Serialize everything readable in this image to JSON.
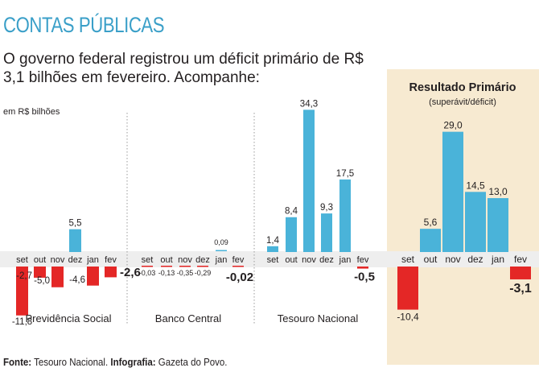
{
  "header": {
    "title": "CONTAS PÚBLICAS",
    "lede": "O governo federal registrou um déficit primário de R$ 3,1 bilhões em fevereiro. Acompanhe:",
    "unit_label": "em R$ bilhões"
  },
  "footer": {
    "source_label": "Fonte:",
    "source_text": "Tesouro Nacional.",
    "credit_label": "Infografia:",
    "credit_text": "Gazeta do Povo."
  },
  "colors": {
    "positive": "#4ab3d9",
    "negative": "#e42726",
    "highlight_bg": "#f7ead1",
    "baseline_band": "#eeeeee",
    "divider": "#999999"
  },
  "chart_data": [
    {
      "type": "bar",
      "title": "Previdência Social",
      "categories": [
        "set",
        "out",
        "nov",
        "dez",
        "jan",
        "fev"
      ],
      "values": [
        -11.8,
        -2.7,
        -5.0,
        5.5,
        -4.6,
        -2.6
      ],
      "labels": [
        "-11,8",
        "-2,7",
        "-5,0",
        "5,5",
        "-4,6",
        "-2,6"
      ]
    },
    {
      "type": "bar",
      "title": "Banco Central",
      "categories": [
        "set",
        "out",
        "nov",
        "dez",
        "jan",
        "fev"
      ],
      "values": [
        -0.03,
        -0.13,
        -0.35,
        -0.29,
        0.09,
        -0.02
      ],
      "labels": [
        "-0,03",
        "-0,13",
        "-0,35",
        "-0,29",
        "0,09",
        "-0,02"
      ]
    },
    {
      "type": "bar",
      "title": "Tesouro Nacional",
      "categories": [
        "set",
        "out",
        "nov",
        "dez",
        "jan",
        "fev"
      ],
      "values": [
        1.4,
        8.4,
        34.3,
        9.3,
        17.5,
        -0.5
      ],
      "labels": [
        "1,4",
        "8,4",
        "34,3",
        "9,3",
        "17,5",
        "-0,5"
      ]
    },
    {
      "type": "bar",
      "title": "Resultado Primário",
      "subtitle": "(superávit/déficit)",
      "categories": [
        "set",
        "out",
        "nov",
        "dez",
        "jan",
        "fev"
      ],
      "values": [
        -10.4,
        5.6,
        29.0,
        14.5,
        13.0,
        -3.1
      ],
      "labels": [
        "-10,4",
        "5,6",
        "29,0",
        "14,5",
        "13,0",
        "-3,1"
      ]
    }
  ]
}
